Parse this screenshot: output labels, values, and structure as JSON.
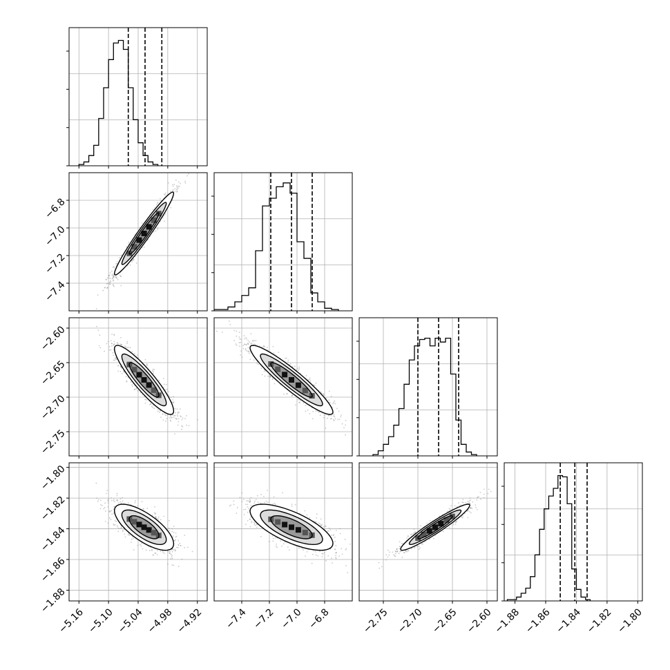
{
  "chart_data": {
    "type": "corner",
    "grid": true,
    "parameters": [
      {
        "range": [
          -5.18,
          -4.9
        ],
        "ticks": [
          -5.16,
          -5.1,
          -5.04,
          -4.98,
          -4.92
        ],
        "tick_labels": [
          "−5.16",
          "−5.10",
          "−5.04",
          "−4.98",
          "−4.92"
        ],
        "quantiles": [
          -5.06,
          -5.026,
          -4.992
        ],
        "hist_start": -5.16,
        "hist_width": 0.01,
        "hist_counts": [
          0.01,
          0.03,
          0.08,
          0.16,
          0.37,
          0.61,
          0.83,
          0.96,
          0.98,
          0.91,
          0.61,
          0.36,
          0.18,
          0.08,
          0.03,
          0.01
        ],
        "hist_ymax": 1.08
      },
      {
        "range": [
          -7.6,
          -6.6
        ],
        "ticks": [
          -7.4,
          -7.2,
          -7.0,
          -6.8
        ],
        "tick_labels": [
          "−7.4",
          "−7.2",
          "−7.0",
          "−6.8"
        ],
        "quantiles": [
          -7.19,
          -7.04,
          -6.89
        ],
        "hist_start": -7.6,
        "hist_width": 0.05,
        "hist_counts": [
          0.01,
          0.01,
          0.03,
          0.07,
          0.12,
          0.18,
          0.47,
          0.82,
          0.88,
          0.97,
          1.0,
          0.92,
          0.54,
          0.41,
          0.14,
          0.07,
          0.02,
          0.01
        ],
        "hist_ymax": 1.08
      },
      {
        "range": [
          -2.785,
          -2.585
        ],
        "ticks": [
          -2.75,
          -2.7,
          -2.65,
          -2.6
        ],
        "tick_labels": [
          "−2.75",
          "−2.70",
          "−2.65",
          "−2.60"
        ],
        "quantiles": [
          -2.7,
          -2.67,
          -2.641
        ],
        "hist_start": -2.765,
        "hist_width": 0.0075,
        "hist_counts": [
          0.01,
          0.04,
          0.09,
          0.15,
          0.24,
          0.37,
          0.56,
          0.75,
          0.86,
          0.91,
          0.92,
          0.86,
          0.92,
          0.89,
          0.92,
          0.64,
          0.28,
          0.09,
          0.03,
          0.01
        ],
        "hist_ymax": 1.08
      },
      {
        "range": [
          -1.887,
          -1.797
        ],
        "ticks": [
          -1.88,
          -1.86,
          -1.84,
          -1.82,
          -1.8
        ],
        "tick_labels": [
          "−1.88",
          "−1.86",
          "−1.84",
          "−1.82",
          "−1.80"
        ],
        "quantiles": [
          -1.8505,
          -1.841,
          -1.833
        ],
        "hist_start": -1.885,
        "hist_width": 0.003,
        "hist_counts": [
          0.01,
          0.01,
          0.03,
          0.06,
          0.1,
          0.19,
          0.36,
          0.56,
          0.72,
          0.82,
          0.88,
          0.98,
          0.97,
          0.76,
          0.25,
          0.09,
          0.03,
          0.01
        ],
        "hist_ymax": 1.08
      }
    ],
    "pairs": [
      {
        "x": 0,
        "y": 1,
        "mean": [
          -5.028,
          -7.04
        ],
        "sd": [
          0.03,
          0.15
        ],
        "rho": 0.97
      },
      {
        "x": 0,
        "y": 2,
        "mean": [
          -5.028,
          -2.675
        ],
        "sd": [
          0.03,
          0.025
        ],
        "rho": -0.9
      },
      {
        "x": 1,
        "y": 2,
        "mean": [
          -7.04,
          -2.675
        ],
        "sd": [
          0.15,
          0.025
        ],
        "rho": -0.93
      },
      {
        "x": 0,
        "y": 3,
        "mean": [
          -5.028,
          -1.839
        ],
        "sd": [
          0.03,
          0.0075
        ],
        "rho": -0.72
      },
      {
        "x": 1,
        "y": 3,
        "mean": [
          -7.04,
          -1.839
        ],
        "sd": [
          0.15,
          0.0075
        ],
        "rho": -0.7
      },
      {
        "x": 2,
        "y": 3,
        "mean": [
          -2.675,
          -1.839
        ],
        "sd": [
          0.025,
          0.0075
        ],
        "rho": 0.95
      }
    ],
    "contour_levels_sigma": [
      1.0,
      1.5,
      2.0
    ],
    "colors": {
      "line": "#000000",
      "grid": "#b0b0b0",
      "points": "#8a8a8a"
    }
  }
}
